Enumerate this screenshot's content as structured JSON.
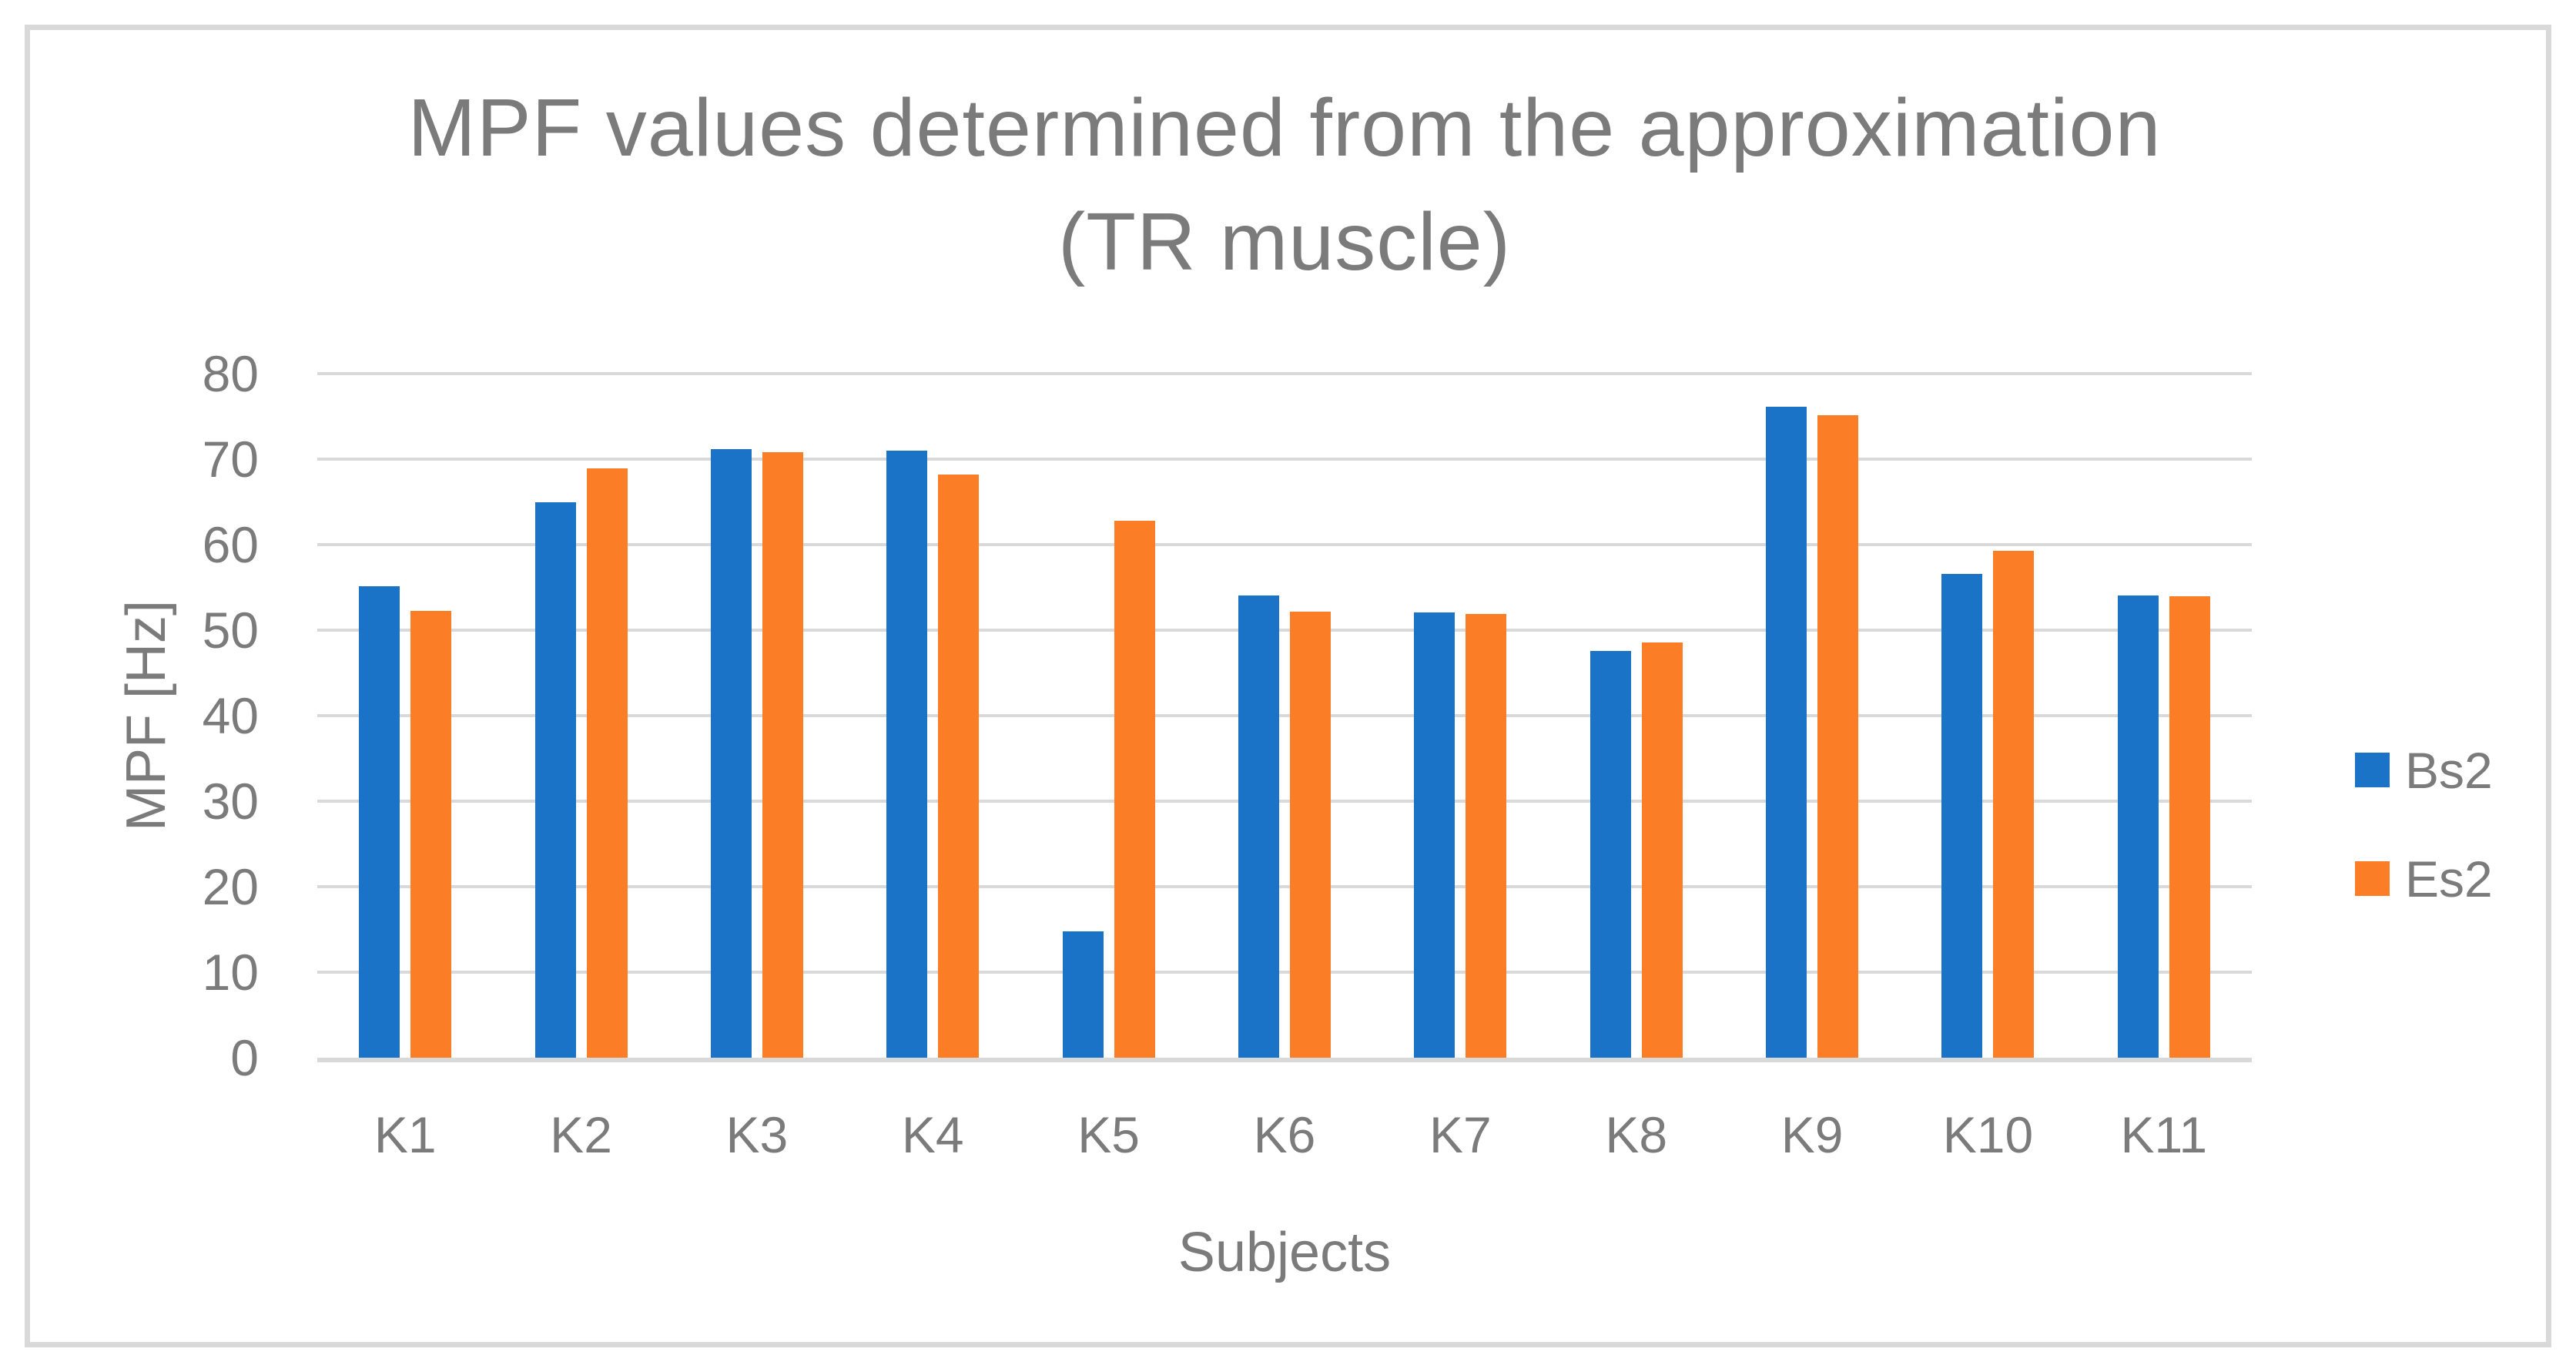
{
  "figure": {
    "title_line1": "MPF values determined from the approximation",
    "title_line2": "(TR muscle)"
  },
  "chart_data": {
    "type": "bar",
    "title": "MPF values determined from the approximation (TR muscle)",
    "categories": [
      "K1",
      "K2",
      "K3",
      "K4",
      "K5",
      "K6",
      "K7",
      "K8",
      "K9",
      "K10",
      "K11"
    ],
    "series": [
      {
        "name": "Bs2",
        "color": "#1B73C8",
        "values": [
          55.1,
          65.0,
          71.2,
          71.0,
          14.8,
          54.1,
          52.1,
          47.6,
          76.1,
          56.6,
          54.1
        ]
      },
      {
        "name": "Es2",
        "color": "#FB7D26",
        "values": [
          52.3,
          68.9,
          70.8,
          68.2,
          62.8,
          52.2,
          51.9,
          48.6,
          75.1,
          59.3,
          54.0
        ]
      }
    ],
    "xlabel": "Subjects",
    "ylabel": "MPF [Hz]",
    "ylim": [
      0,
      80
    ],
    "y_ticks": [
      0,
      10,
      20,
      30,
      40,
      50,
      60,
      70,
      80
    ],
    "grid": "horizontal-only",
    "legend_position": "right"
  },
  "colors": {
    "background": "#FFFFFF",
    "border": "#D9D9D9",
    "gridline": "#D9D9D9",
    "text": "#7B7B7B"
  }
}
